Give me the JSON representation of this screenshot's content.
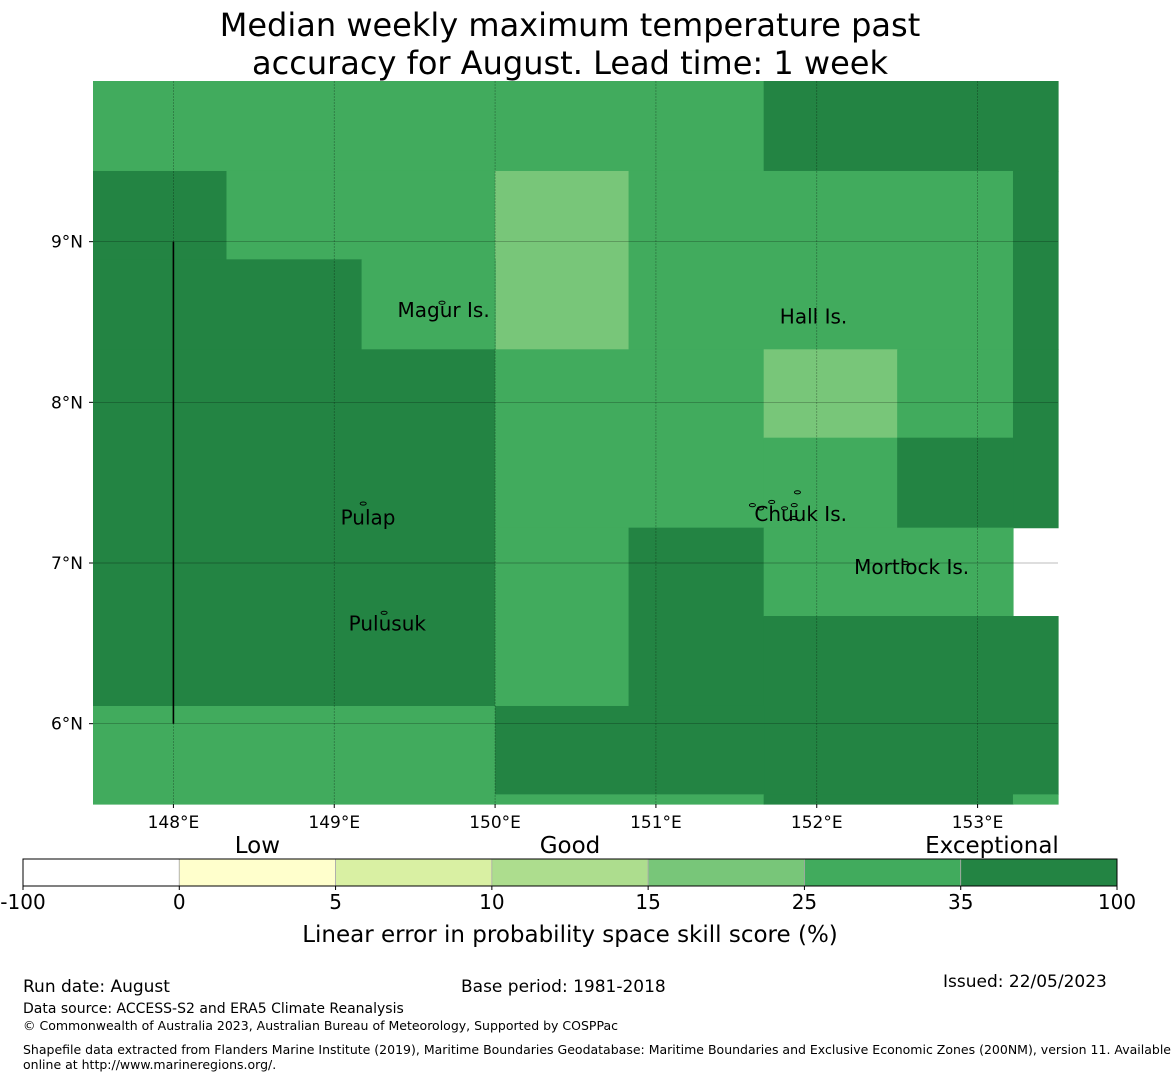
{
  "title": {
    "line1": "Median weekly maximum temperature past",
    "line2": "accuracy for August. Lead time: 1 week"
  },
  "map": {
    "lon_labels": [
      "148°E",
      "149°E",
      "150°E",
      "151°E",
      "152°E",
      "153°E"
    ],
    "lon_values": [
      148,
      149,
      150,
      151,
      152,
      153
    ],
    "lat_labels": [
      "9°N",
      "8°N",
      "7°N",
      "6°N"
    ],
    "lat_values": [
      9,
      8,
      7,
      6
    ],
    "lon_range": [
      147.5,
      153.5
    ],
    "lat_range": [
      5.5,
      10.0
    ],
    "grid_cells": [
      {
        "lon": [
          147.5,
          151.67
        ],
        "lat": [
          9.44,
          10.0
        ],
        "cat": 5
      },
      {
        "lon": [
          151.67,
          153.5
        ],
        "lat": [
          9.44,
          10.0
        ],
        "cat": 6
      },
      {
        "lon": [
          147.5,
          148.33
        ],
        "lat": [
          8.89,
          9.44
        ],
        "cat": 6
      },
      {
        "lon": [
          148.33,
          150.0
        ],
        "lat": [
          8.89,
          9.44
        ],
        "cat": 5
      },
      {
        "lon": [
          150.0,
          150.83
        ],
        "lat": [
          8.33,
          9.44
        ],
        "cat": 4
      },
      {
        "lon": [
          150.83,
          153.22
        ],
        "lat": [
          8.33,
          9.44
        ],
        "cat": 5
      },
      {
        "lon": [
          153.22,
          153.5
        ],
        "lat": [
          8.33,
          9.44
        ],
        "cat": 6
      },
      {
        "lon": [
          147.5,
          149.17
        ],
        "lat": [
          8.33,
          8.89
        ],
        "cat": 6
      },
      {
        "lon": [
          149.17,
          150.0
        ],
        "lat": [
          8.33,
          8.89
        ],
        "cat": 5
      },
      {
        "lon": [
          147.5,
          150.0
        ],
        "lat": [
          6.11,
          8.33
        ],
        "cat": 6
      },
      {
        "lon": [
          150.0,
          151.67
        ],
        "lat": [
          7.22,
          8.33
        ],
        "cat": 5
      },
      {
        "lon": [
          151.67,
          152.5
        ],
        "lat": [
          7.78,
          8.33
        ],
        "cat": 4
      },
      {
        "lon": [
          152.5,
          153.22
        ],
        "lat": [
          7.78,
          8.33
        ],
        "cat": 5
      },
      {
        "lon": [
          153.22,
          153.5
        ],
        "lat": [
          7.22,
          8.33
        ],
        "cat": 6
      },
      {
        "lon": [
          151.67,
          152.5
        ],
        "lat": [
          7.22,
          7.78
        ],
        "cat": 5
      },
      {
        "lon": [
          152.5,
          153.22
        ],
        "lat": [
          7.22,
          7.78
        ],
        "cat": 6
      },
      {
        "lon": [
          150.0,
          150.83
        ],
        "lat": [
          6.11,
          7.22
        ],
        "cat": 5
      },
      {
        "lon": [
          150.83,
          151.67
        ],
        "lat": [
          6.11,
          7.22
        ],
        "cat": 6
      },
      {
        "lon": [
          151.67,
          153.22
        ],
        "lat": [
          6.67,
          7.22
        ],
        "cat": 5
      },
      {
        "lon": [
          151.67,
          153.5
        ],
        "lat": [
          5.56,
          6.67
        ],
        "cat": 6
      },
      {
        "lon": [
          147.5,
          150.0
        ],
        "lat": [
          5.5,
          6.11
        ],
        "cat": 5
      },
      {
        "lon": [
          150.0,
          151.67
        ],
        "lat": [
          5.56,
          6.11
        ],
        "cat": 6
      },
      {
        "lon": [
          150.0,
          151.67
        ],
        "lat": [
          5.5,
          5.56
        ],
        "cat": 5
      },
      {
        "lon": [
          151.67,
          153.22
        ],
        "lat": [
          5.5,
          5.56
        ],
        "cat": 6
      },
      {
        "lon": [
          153.22,
          153.5
        ],
        "lat": [
          5.5,
          5.56
        ],
        "cat": 5
      }
    ],
    "boundary_line": {
      "lon": 148.0,
      "lat": [
        6.0,
        9.0
      ]
    },
    "places": [
      {
        "name": "Magur Is.",
        "lon": 149.68,
        "lat": 8.53
      },
      {
        "name": "Hall Is.",
        "lon": 151.98,
        "lat": 8.49
      },
      {
        "name": "Pulap",
        "lon": 149.21,
        "lat": 7.24
      },
      {
        "name": "Chuuk Is.",
        "lon": 151.9,
        "lat": 7.26
      },
      {
        "name": "Mortlock Is.",
        "lon": 152.59,
        "lat": 6.93
      },
      {
        "name": "Pulusuk",
        "lon": 149.33,
        "lat": 6.58
      }
    ],
    "islands": [
      {
        "lon": 149.67,
        "lat": 8.62
      },
      {
        "lon": 149.18,
        "lat": 7.37
      },
      {
        "lon": 149.31,
        "lat": 6.69
      },
      {
        "lon": 151.6,
        "lat": 7.36
      },
      {
        "lon": 151.65,
        "lat": 7.34
      },
      {
        "lon": 151.72,
        "lat": 7.38
      },
      {
        "lon": 151.8,
        "lat": 7.34
      },
      {
        "lon": 151.86,
        "lat": 7.36
      },
      {
        "lon": 151.88,
        "lat": 7.44
      },
      {
        "lon": 152.55,
        "lat": 7.0
      },
      {
        "lon": 151.86,
        "lat": 7.28
      }
    ]
  },
  "legend": {
    "categories": [
      "Low",
      "Good",
      "Exceptional"
    ],
    "tick_labels": [
      "-100",
      "0",
      "5",
      "10",
      "15",
      "25",
      "35",
      "100"
    ],
    "colors": [
      "#ffffff",
      "#ffffcc",
      "#d9f0a3",
      "#addd8e",
      "#78c679",
      "#41ab5d",
      "#238443"
    ],
    "label": "Linear error in probability space skill score (%)"
  },
  "footer": {
    "run_date": "Run date: August",
    "base_period": "Base period: 1981-2018",
    "issued": "Issued: 22/05/2023",
    "data_source": "Data source: ACCESS-S2 and ERA5 Climate Reanalysis",
    "copyright": "© Commonwealth of Australia 2023, Australian Bureau of Meteorology, Supported by COSPPac",
    "shapefile_line1": "Shapefile data extracted from Flanders Marine Institute (2019), Maritime Boundaries Geodatabase: Maritime Boundaries and Exclusive Economic Zones (200NM), version 11. Available",
    "shapefile_line2": "online at http://www.marineregions.org/."
  }
}
